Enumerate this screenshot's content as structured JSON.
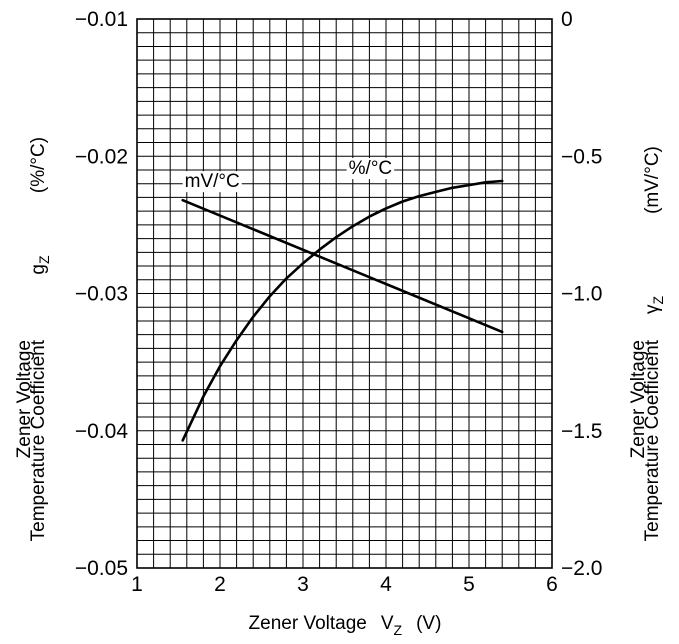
{
  "chart_data": {
    "type": "line",
    "x_axis": {
      "label": "Zener Voltage",
      "symbol": "V",
      "symbol_sub": "Z",
      "unit": "(V)",
      "range": [
        1,
        6
      ],
      "ticks": [
        "1",
        "2",
        "3",
        "4",
        "5",
        "6"
      ]
    },
    "y_axis_left": {
      "label_line1": "Zener Voltage",
      "label_line2": "Temperature Coefficient",
      "symbol": "g",
      "symbol_sub": "Z",
      "unit": "(%/°C)",
      "range": [
        -0.05,
        -0.01
      ],
      "ticks": [
        "−0.01",
        "−0.02",
        "−0.03",
        "−0.04",
        "−0.05"
      ]
    },
    "y_axis_right": {
      "label_line1": "Zener Voltage",
      "label_line2": "Temperature Coefficient",
      "symbol": "γ",
      "symbol_sub": "Z",
      "unit": "(mV/°C)",
      "range": [
        -2.0,
        0
      ],
      "ticks": [
        "0",
        "−0.5",
        "−1.0",
        "−1.5",
        "−2.0"
      ]
    },
    "grid": true,
    "series": [
      {
        "name": "%/°C",
        "axis": "left",
        "x": [
          1.55,
          1.8,
          2.0,
          2.2,
          2.4,
          2.6,
          2.8,
          3.0,
          3.2,
          3.4,
          3.6,
          3.8,
          4.0,
          4.2,
          4.4,
          4.6,
          4.8,
          5.0,
          5.2,
          5.4
        ],
        "y": [
          -0.0407,
          -0.0375,
          -0.0353,
          -0.0334,
          -0.0317,
          -0.0302,
          -0.0289,
          -0.0278,
          -0.0268,
          -0.0259,
          -0.0251,
          -0.0244,
          -0.0238,
          -0.0233,
          -0.0229,
          -0.0226,
          -0.0223,
          -0.0221,
          -0.0219,
          -0.0218
        ]
      },
      {
        "name": "mV/°C",
        "axis": "right",
        "x": [
          1.55,
          5.4
        ],
        "y": [
          -0.66,
          -1.14
        ]
      }
    ]
  }
}
